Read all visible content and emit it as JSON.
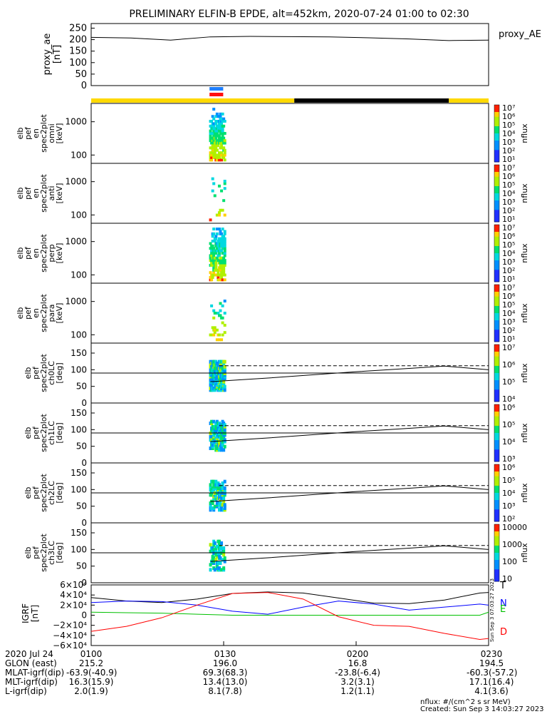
{
  "title": "PRELIMINARY ELFIN-B EPDE, alt=452km, 2020-07-24 01:00 to 02:30",
  "chart_data": [
    {
      "id": "proxy_ae",
      "type": "line",
      "ylabel": [
        "proxy_ae",
        "[nT]"
      ],
      "legend": "proxy_AE",
      "yticks": [
        "250",
        "200",
        "150",
        "100",
        "50",
        "0"
      ],
      "ylim": [
        0,
        270
      ],
      "x_minutes": [
        0,
        9,
        18,
        27,
        36,
        45,
        54,
        63,
        72,
        81,
        90
      ],
      "values": [
        210,
        207,
        198,
        212,
        214,
        213,
        212,
        208,
        203,
        196,
        198
      ]
    },
    {
      "id": "bars",
      "type": "bar",
      "science_zone": {
        "blue": [
          26.8,
          29.9
        ],
        "red": [
          26.8,
          29.9
        ]
      },
      "day_night": [
        {
          "from": 0,
          "to": 46,
          "color": "#ffd900"
        },
        {
          "from": 46,
          "to": 81,
          "color": "#000000"
        },
        {
          "from": 81,
          "to": 90,
          "color": "#ffd900"
        }
      ]
    },
    {
      "id": "omni",
      "type": "heatmap",
      "ylabel": [
        "elb",
        "pef",
        "en",
        "spec2plot",
        "omni",
        "[keV]"
      ],
      "yticks": [
        "1000",
        "100"
      ],
      "cbar": {
        "labels": [
          "10⁷",
          "10⁶",
          "10⁵",
          "10⁴",
          "10³",
          "10²",
          "10¹"
        ],
        "unit": "nflux"
      },
      "density": 1.0
    },
    {
      "id": "anti",
      "type": "heatmap",
      "ylabel": [
        "elb",
        "pef",
        "en",
        "spec2plot",
        "anti",
        "[keV]"
      ],
      "yticks": [
        "1000",
        "100"
      ],
      "cbar": {
        "labels": [
          "10⁷",
          "10⁶",
          "10⁵",
          "10⁴",
          "10³",
          "10²",
          "10¹"
        ],
        "unit": "nflux"
      },
      "density": 0.12
    },
    {
      "id": "perp",
      "type": "heatmap",
      "ylabel": [
        "elb",
        "pef",
        "en",
        "spec2plot",
        "perp",
        "[keV]"
      ],
      "yticks": [
        "1000",
        "100"
      ],
      "cbar": {
        "labels": [
          "10⁷",
          "10⁶",
          "10⁵",
          "10⁴",
          "10³",
          "10²",
          "10¹"
        ],
        "unit": "nflux"
      },
      "density": 1.0
    },
    {
      "id": "para",
      "type": "heatmap",
      "ylabel": [
        "elb",
        "pef",
        "en",
        "spec2plot",
        "para",
        "[keV]"
      ],
      "yticks": [
        "1000",
        "100"
      ],
      "cbar": {
        "labels": [
          "10⁷",
          "10⁶",
          "10⁵",
          "10⁴",
          "10³",
          "10²",
          "10¹"
        ],
        "unit": "nflux"
      },
      "density": 0.18
    },
    {
      "id": "ch0",
      "type": "heatmap",
      "ylabel": [
        "elb",
        "pef",
        "spec2plot",
        "ch0LC",
        "[deg]"
      ],
      "yticks": [
        "150",
        "100",
        "50",
        "0"
      ],
      "cbar": {
        "labels": [
          "10⁷",
          "10⁶",
          "10⁵",
          "10⁴"
        ],
        "unit": "nflux"
      },
      "density": 1.0
    },
    {
      "id": "ch1",
      "type": "heatmap",
      "ylabel": [
        "elb",
        "pef",
        "spec2plot",
        "ch1LC",
        "[deg]"
      ],
      "yticks": [
        "150",
        "100",
        "50",
        "0"
      ],
      "cbar": {
        "labels": [
          "10⁶",
          "10⁵",
          "10⁴",
          "10³"
        ],
        "unit": "nflux"
      },
      "density": 0.6
    },
    {
      "id": "ch2",
      "type": "heatmap",
      "ylabel": [
        "elb",
        "pef",
        "spec2plot",
        "ch2LC",
        "[deg]"
      ],
      "yticks": [
        "150",
        "100",
        "50",
        "0"
      ],
      "cbar": {
        "labels": [
          "10⁶",
          "10⁵",
          "10⁴",
          "10³",
          "10²"
        ],
        "unit": "nflux"
      },
      "density": 0.55
    },
    {
      "id": "ch3",
      "type": "heatmap",
      "ylabel": [
        "elb",
        "pef",
        "spec2plot",
        "ch3LC",
        "[deg]"
      ],
      "yticks": [
        "150",
        "100",
        "50",
        "0"
      ],
      "cbar": {
        "labels": [
          "10000",
          "1000",
          "100",
          "10"
        ],
        "unit": "nflux"
      },
      "density": 0.35
    },
    {
      "id": "igrf",
      "type": "line",
      "ylabel": [
        "IGRF",
        "[nT]"
      ],
      "yticks": [
        "6×10⁴",
        "4×10⁴",
        "2×10⁴",
        "0",
        "−2×10⁴",
        "−4×10⁴",
        "−6×10⁴"
      ],
      "ylim": [
        -60000,
        60000
      ],
      "x_minutes": [
        0,
        8,
        16,
        24,
        32,
        40,
        48,
        56,
        64,
        72,
        80,
        88,
        90
      ],
      "series": [
        {
          "name": "T",
          "color": "#000000",
          "values": [
            35000,
            28000,
            25000,
            32000,
            43000,
            46000,
            44000,
            34000,
            24000,
            23000,
            30000,
            44000,
            45000
          ]
        },
        {
          "name": "N",
          "color": "#0000ff",
          "values": [
            25000,
            28000,
            27000,
            20000,
            8000,
            2000,
            16000,
            28000,
            22000,
            10000,
            16000,
            22000,
            20000
          ]
        },
        {
          "name": "E",
          "color": "#00c000",
          "values": [
            6000,
            5000,
            4000,
            2000,
            0,
            0,
            0,
            0,
            0,
            0,
            0,
            0,
            6000
          ]
        },
        {
          "name": "D",
          "color": "#ff0000",
          "values": [
            -32000,
            -22000,
            -5000,
            20000,
            43000,
            45000,
            32000,
            -3000,
            -20000,
            -22000,
            -36000,
            -48000,
            -46000
          ]
        }
      ]
    }
  ],
  "axis": {
    "x_range_minutes": [
      0,
      90
    ],
    "loss_cone_dashed_deg": 112,
    "ref_deg": 90,
    "tick_labels": [
      {
        "at": 0,
        "text": "0100"
      },
      {
        "at": 30,
        "text": "0130"
      },
      {
        "at": 60,
        "text": "0200"
      },
      {
        "at": 90,
        "text": "0230"
      }
    ]
  },
  "footer": {
    "rows": [
      {
        "label": "2020 Jul 24",
        "values": [
          "0100",
          "0130",
          "0200",
          "0230"
        ]
      },
      {
        "label": "GLON (east)",
        "values": [
          "215.2",
          "196.0",
          "16.8",
          "194.5"
        ]
      },
      {
        "label": "MLAT-igrf(dip)",
        "values": [
          "-63.9(-40.9)",
          "69.3(68.3)",
          "-23.8(-6.4)",
          "-60.3(-57.2)"
        ]
      },
      {
        "label": "MLT-igrf(dip)",
        "values": [
          "16.3(15.9)",
          "13.4(13.0)",
          "3.2(3.1)",
          "17.1(16.4)"
        ]
      },
      {
        "label": "L-igrf(dip)",
        "values": [
          "2.0(1.9)",
          "8.1(7.8)",
          "1.2(1.1)",
          "4.1(3.6)"
        ]
      }
    ],
    "units": "nflux: #/(cm^2 s sr MeV)",
    "created": "Created: Sun Sep  3 14:03:27 2023",
    "stamp": "Sun Sep  3 07:03:27 2023"
  }
}
